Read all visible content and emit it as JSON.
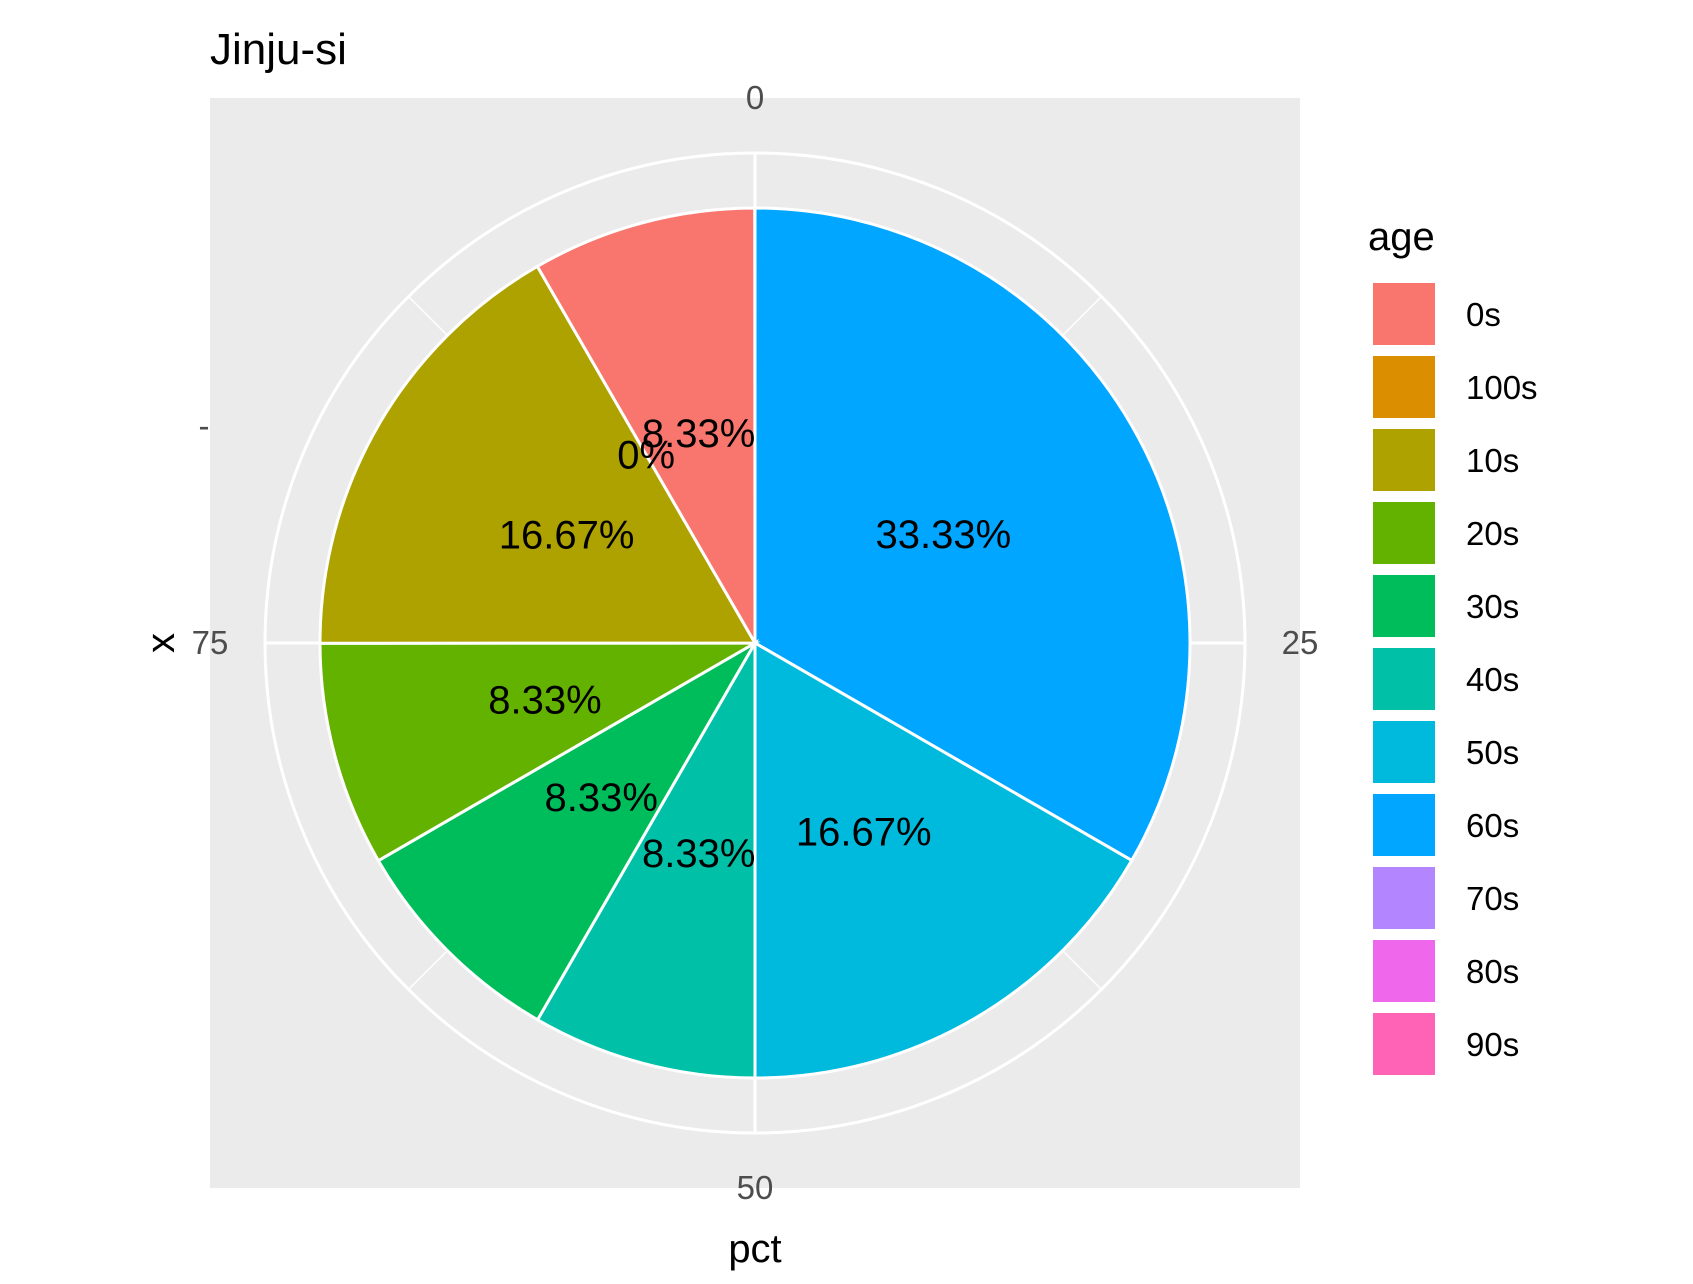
{
  "chart_data": {
    "type": "pie",
    "title": "Jinju-si",
    "xlabel": "pct",
    "ylabel": "x",
    "y_tick_label": "-",
    "theta_ticks": [
      "0",
      "25",
      "50",
      "75"
    ],
    "theta_tick_values": [
      0,
      25,
      50,
      75
    ],
    "theta_range": [
      0,
      100
    ],
    "legend_title": "age",
    "legend_position": "right",
    "grid": true,
    "background": "#ebebeb",
    "categories": [
      "0s",
      "100s",
      "10s",
      "20s",
      "30s",
      "40s",
      "50s",
      "60s",
      "70s",
      "80s",
      "90s"
    ],
    "colors": [
      "#F8766D",
      "#DB8E00",
      "#AEA200",
      "#64B200",
      "#00BD5C",
      "#00C1A7",
      "#00BADE",
      "#00A6FF",
      "#B385FF",
      "#EF67EB",
      "#FF63B6"
    ],
    "slices": [
      {
        "age": "60s",
        "value": 33.33,
        "label": "33.33%"
      },
      {
        "age": "50s",
        "value": 16.67,
        "label": "16.67%"
      },
      {
        "age": "40s",
        "value": 8.33,
        "label": "8.33%"
      },
      {
        "age": "30s",
        "value": 8.33,
        "label": "8.33%"
      },
      {
        "age": "20s",
        "value": 8.33,
        "label": "8.33%"
      },
      {
        "age": "10s",
        "value": 16.67,
        "label": "16.67%"
      },
      {
        "age": "100s",
        "value": 0,
        "label": "0%"
      },
      {
        "age": "0s",
        "value": 8.33,
        "label": "8.33%"
      }
    ]
  }
}
